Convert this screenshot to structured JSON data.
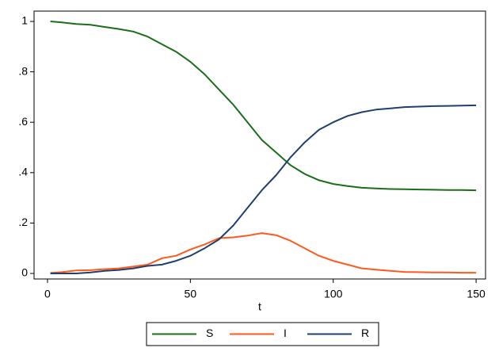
{
  "chart_data": {
    "type": "line",
    "xlabel": "t",
    "x": [
      1,
      5,
      10,
      15,
      20,
      25,
      30,
      35,
      40,
      45,
      50,
      55,
      60,
      65,
      70,
      75,
      80,
      85,
      90,
      95,
      100,
      105,
      110,
      115,
      120,
      125,
      130,
      135,
      140,
      145,
      150
    ],
    "series": [
      {
        "name": "S",
        "color": "#1a6e1a",
        "values": [
          1.0,
          0.996,
          0.99,
          0.987,
          0.978,
          0.97,
          0.96,
          0.94,
          0.91,
          0.88,
          0.84,
          0.79,
          0.73,
          0.67,
          0.6,
          0.53,
          0.48,
          0.43,
          0.395,
          0.37,
          0.355,
          0.347,
          0.34,
          0.337,
          0.335,
          0.334,
          0.333,
          0.332,
          0.331,
          0.331,
          0.33
        ]
      },
      {
        "name": "I",
        "color": "#ff5a1e",
        "values": [
          0.002,
          0.005,
          0.012,
          0.013,
          0.017,
          0.02,
          0.027,
          0.035,
          0.06,
          0.07,
          0.095,
          0.115,
          0.14,
          0.143,
          0.15,
          0.16,
          0.152,
          0.13,
          0.1,
          0.07,
          0.05,
          0.035,
          0.02,
          0.015,
          0.01,
          0.006,
          0.005,
          0.004,
          0.004,
          0.003,
          0.003
        ]
      },
      {
        "name": "R",
        "color": "#1f3f6e",
        "values": [
          0,
          0,
          0,
          0.004,
          0.01,
          0.014,
          0.02,
          0.03,
          0.035,
          0.05,
          0.07,
          0.1,
          0.135,
          0.19,
          0.26,
          0.33,
          0.39,
          0.46,
          0.52,
          0.57,
          0.6,
          0.625,
          0.64,
          0.65,
          0.655,
          0.66,
          0.662,
          0.664,
          0.665,
          0.666,
          0.667
        ]
      }
    ],
    "xlim": [
      -4.7,
      153.3
    ],
    "xticks": [
      0,
      50,
      100,
      150
    ],
    "ylim": [
      -0.022,
      1.041
    ],
    "yticks": [
      0,
      {
        "value": 0.2,
        "label": ".2"
      },
      {
        "value": 0.4,
        "label": ".4"
      },
      {
        "value": 0.6,
        "label": ".6"
      },
      {
        "value": 0.8,
        "label": ".8"
      },
      1
    ],
    "grid": false,
    "legend": "bottom"
  }
}
